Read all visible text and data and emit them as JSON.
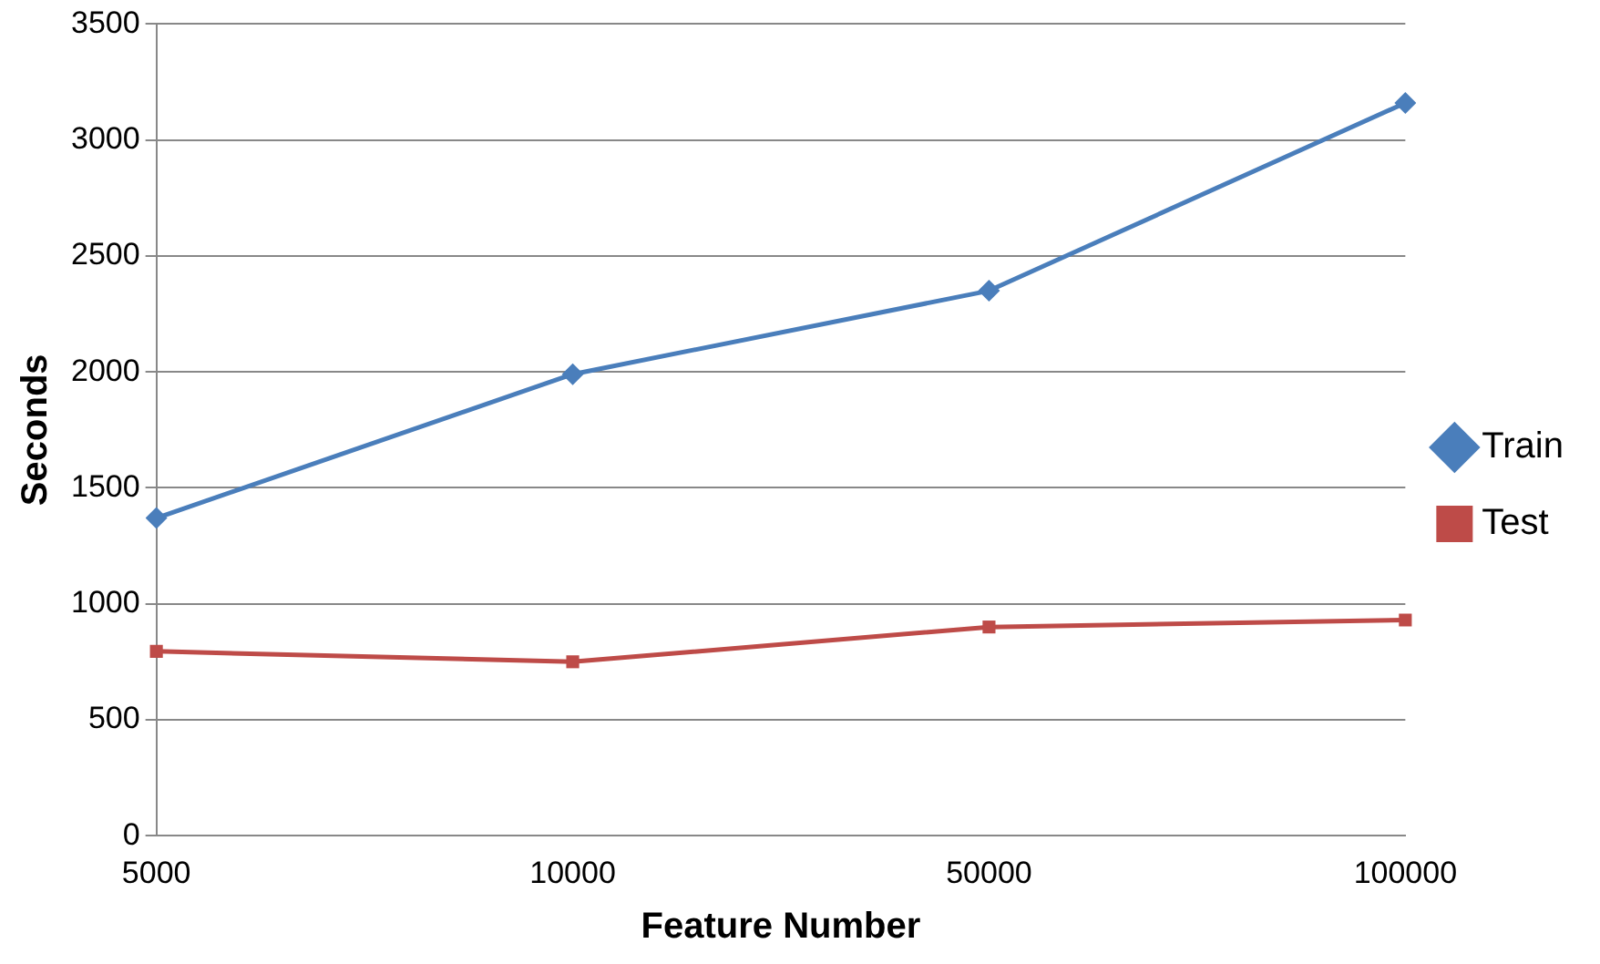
{
  "chart_data": {
    "type": "line",
    "xlabel": "Feature Number",
    "ylabel": "Seconds",
    "categories": [
      "5000",
      "10000",
      "50000",
      "100000"
    ],
    "series": [
      {
        "name": "Train",
        "color": "#4a7ebb",
        "marker": "diamond",
        "values": [
          1370,
          1990,
          2350,
          3160
        ]
      },
      {
        "name": "Test",
        "color": "#be4b48",
        "marker": "square",
        "values": [
          795,
          750,
          900,
          930
        ]
      }
    ],
    "ylim": [
      0,
      3500
    ],
    "yticks": [
      0,
      500,
      1000,
      1500,
      2000,
      2500,
      3000,
      3500
    ],
    "grid": "y",
    "legend": "right"
  }
}
